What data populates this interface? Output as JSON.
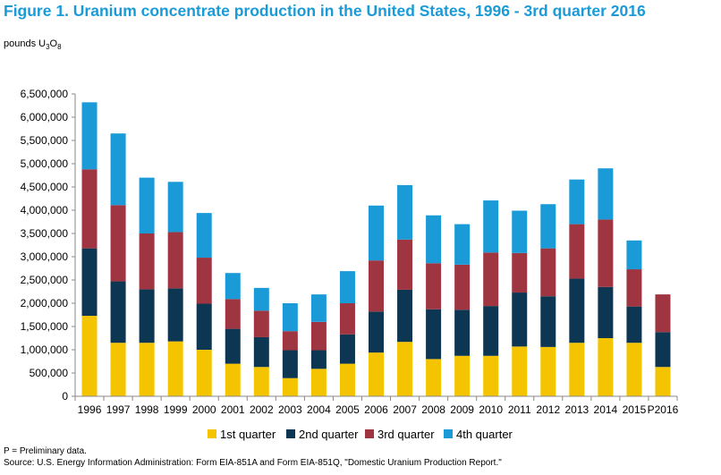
{
  "title": "Figure 1.  Uranium concentrate production in the United States, 1996 - 3rd quarter 2016",
  "unit_label": {
    "text": "pounds U",
    "sub1": "3",
    "mid": "O",
    "sub2": "8"
  },
  "footnote": "P = Preliminary data.",
  "source": "Source: U.S. Energy Information Administration: Form EIA-851A and Form EIA-851Q, \"Domestic Uranium Production Report.\"",
  "chart_data": {
    "type": "bar",
    "stacked": true,
    "categories": [
      "1996",
      "1997",
      "1998",
      "1999",
      "2000",
      "2001",
      "2002",
      "2003",
      "2004",
      "2005",
      "2006",
      "2007",
      "2008",
      "2009",
      "2010",
      "2011",
      "2012",
      "2013",
      "2014",
      "2015",
      "P2016"
    ],
    "series": [
      {
        "name": "1st quarter",
        "color": "#f5c400",
        "values": [
          1730000,
          1150000,
          1150000,
          1180000,
          1000000,
          700000,
          630000,
          390000,
          590000,
          700000,
          940000,
          1170000,
          800000,
          870000,
          870000,
          1070000,
          1060000,
          1150000,
          1250000,
          1150000,
          630000
        ]
      },
      {
        "name": "2nd quarter",
        "color": "#0c3651",
        "values": [
          1450000,
          1320000,
          1150000,
          1140000,
          990000,
          750000,
          640000,
          600000,
          400000,
          630000,
          880000,
          1120000,
          1070000,
          990000,
          1070000,
          1160000,
          1090000,
          1380000,
          1100000,
          780000,
          750000
        ]
      },
      {
        "name": "3rd quarter",
        "color": "#9e3541",
        "values": [
          1700000,
          1640000,
          1200000,
          1210000,
          990000,
          640000,
          570000,
          410000,
          610000,
          670000,
          1100000,
          1080000,
          990000,
          970000,
          1150000,
          850000,
          1030000,
          1170000,
          1450000,
          800000,
          810000
        ]
      },
      {
        "name": "4th quarter",
        "color": "#1a9bd7",
        "values": [
          1440000,
          1540000,
          1200000,
          1080000,
          960000,
          560000,
          490000,
          600000,
          590000,
          690000,
          1180000,
          1170000,
          1030000,
          870000,
          1120000,
          910000,
          950000,
          960000,
          1100000,
          620000,
          0
        ]
      }
    ],
    "ylim": [
      0,
      6500000
    ],
    "yticks": [
      "0",
      "500,000",
      "1,000,000",
      "1,500,000",
      "2,000,000",
      "2,500,000",
      "3,000,000",
      "3,500,000",
      "4,000,000",
      "4,500,000",
      "5,000,000",
      "5,500,000",
      "6,000,000",
      "6,500,000"
    ],
    "ytick_values": [
      0,
      500000,
      1000000,
      1500000,
      2000000,
      2500000,
      3000000,
      3500000,
      4000000,
      4500000,
      5000000,
      5500000,
      6000000,
      6500000
    ],
    "grid": false,
    "legend_position": "bottom"
  }
}
